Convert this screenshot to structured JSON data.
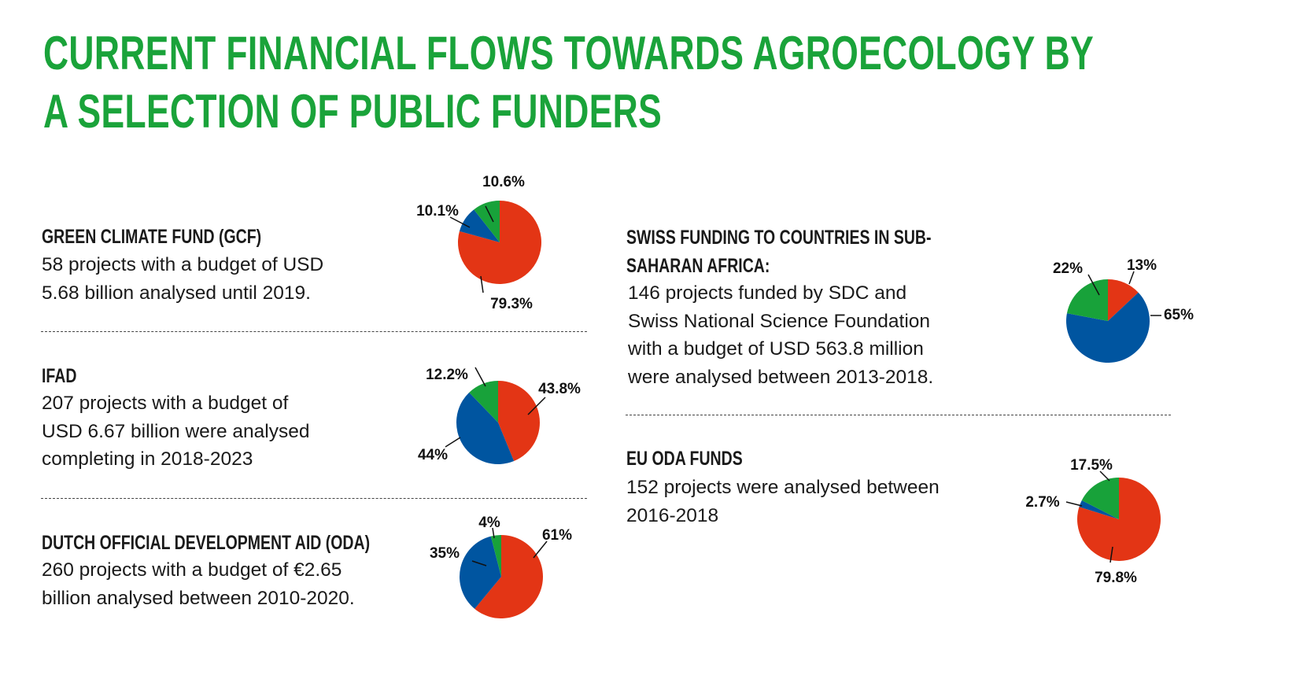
{
  "title_lines": [
    "CURRENT FINANCIAL FLOWS TOWARDS AGROECOLOGY BY",
    "A SELECTION OF PUBLIC FUNDERS"
  ],
  "colors": {
    "title": "#1aa33a",
    "red": "#e33515",
    "blue": "#0055a0",
    "green": "#18a23a"
  },
  "sections": {
    "gcf": {
      "heading": [
        "GREEN CLIMATE FUND (GCF)"
      ],
      "body": [
        "58 projects with a budget of USD",
        "5.68 billion analysed until 2019."
      ]
    },
    "ifad": {
      "heading": [
        "IFAD"
      ],
      "body": [
        "207 projects with a budget of",
        "USD 6.67 billion were analysed",
        "completing in 2018-2023"
      ]
    },
    "dutch": {
      "heading": [
        "DUTCH OFFICIAL DEVELOPMENT AID (ODA)"
      ],
      "body": [
        "260 projects with a budget of €2.65",
        "billion analysed between 2010-2020."
      ]
    },
    "swiss": {
      "heading": [
        "SWISS FUNDING TO COUNTRIES IN SUB-",
        "SAHARAN AFRICA:"
      ],
      "body": [
        "146 projects funded by SDC and",
        "Swiss National Science Foundation",
        "with a budget of USD 563.8 million",
        "were analysed between 2013-2018."
      ]
    },
    "eu": {
      "heading": [
        "EU ODA FUNDS"
      ],
      "body": [
        "152 projects were analysed between",
        "2016-2018"
      ]
    }
  },
  "chart_data": [
    {
      "type": "pie",
      "title": "Green Climate Fund (GCF)",
      "slices": [
        {
          "color": "red",
          "value": 79.3,
          "label": "79.3%"
        },
        {
          "color": "blue",
          "value": 10.1,
          "label": "10.1%"
        },
        {
          "color": "green",
          "value": 10.6,
          "label": "10.6%"
        }
      ]
    },
    {
      "type": "pie",
      "title": "IFAD",
      "slices": [
        {
          "color": "red",
          "value": 43.8,
          "label": "43.8%"
        },
        {
          "color": "blue",
          "value": 44,
          "label": "44%"
        },
        {
          "color": "green",
          "value": 12.2,
          "label": "12.2%"
        }
      ]
    },
    {
      "type": "pie",
      "title": "Dutch Official Development Aid (ODA)",
      "slices": [
        {
          "color": "red",
          "value": 61,
          "label": "61%"
        },
        {
          "color": "blue",
          "value": 35,
          "label": "35%"
        },
        {
          "color": "green",
          "value": 4,
          "label": "4%"
        }
      ]
    },
    {
      "type": "pie",
      "title": "Swiss funding to countries in Sub-Saharan Africa",
      "slices": [
        {
          "color": "red",
          "value": 13,
          "label": "13%"
        },
        {
          "color": "blue",
          "value": 65,
          "label": "65%"
        },
        {
          "color": "green",
          "value": 22,
          "label": "22%"
        }
      ]
    },
    {
      "type": "pie",
      "title": "EU ODA funds",
      "slices": [
        {
          "color": "red",
          "value": 79.8,
          "label": "79.8%"
        },
        {
          "color": "blue",
          "value": 2.7,
          "label": "2.7%"
        },
        {
          "color": "green",
          "value": 17.5,
          "label": "17.5%"
        }
      ]
    }
  ]
}
